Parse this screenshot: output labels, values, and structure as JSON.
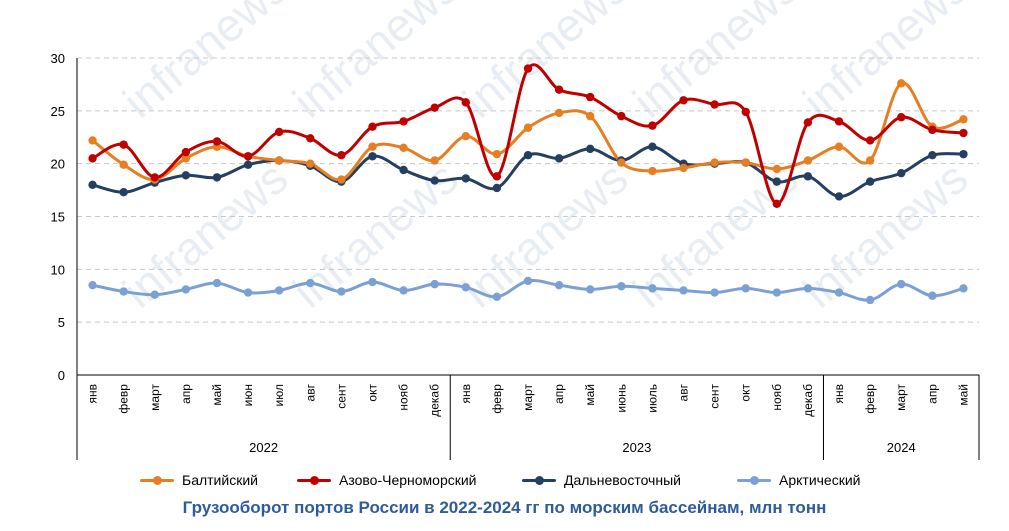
{
  "chart_data": {
    "type": "line",
    "title": "Грузооборот портов России в 2022-2024 гг по морским бассейнам, млн тонн",
    "watermark": "infranews",
    "ylim": [
      0,
      30
    ],
    "yticks": [
      0,
      5,
      10,
      15,
      20,
      25,
      30
    ],
    "grid": true,
    "legend_position": "bottom",
    "months": [
      "янв",
      "февр",
      "март",
      "апр",
      "май",
      "июн",
      "июл",
      "авг",
      "сент",
      "окт",
      "нояб",
      "декаб",
      "янв",
      "февр",
      "март",
      "апр",
      "май",
      "июнь",
      "июль",
      "авг",
      "сент",
      "окт",
      "нояб",
      "декаб",
      "янв",
      "февр",
      "март",
      "апр",
      "май"
    ],
    "years": [
      {
        "label": "2022",
        "count": 12
      },
      {
        "label": "2023",
        "count": 12
      },
      {
        "label": "2024",
        "count": 5
      }
    ],
    "series": [
      {
        "name": "Балтийский",
        "color": "#e67e22",
        "values": [
          22.2,
          19.9,
          18.5,
          20.5,
          21.6,
          20.7,
          20.3,
          20.0,
          18.5,
          21.6,
          21.5,
          20.3,
          22.6,
          20.9,
          23.4,
          24.8,
          24.5,
          20.1,
          19.3,
          19.6,
          20.1,
          20.1,
          19.5,
          20.3,
          21.6,
          20.3,
          27.6,
          23.5,
          24.2
        ]
      },
      {
        "name": "Азово-Черноморский",
        "color": "#c00000",
        "values": [
          20.5,
          21.8,
          18.7,
          21.1,
          22.1,
          20.7,
          23.0,
          22.4,
          20.8,
          23.5,
          24.0,
          25.3,
          25.8,
          18.8,
          29.0,
          27.0,
          26.3,
          24.5,
          23.6,
          26.0,
          25.6,
          24.9,
          16.2,
          23.9,
          24.0,
          22.2,
          24.4,
          23.2,
          22.9
        ]
      },
      {
        "name": "Дальневосточный",
        "color": "#243f60",
        "values": [
          18.0,
          17.3,
          18.2,
          18.9,
          18.7,
          19.9,
          20.3,
          19.8,
          18.3,
          20.7,
          19.4,
          18.4,
          18.6,
          17.7,
          20.8,
          20.5,
          21.4,
          20.3,
          21.6,
          20.0,
          20.0,
          20.1,
          18.3,
          18.8,
          16.9,
          18.3,
          19.1,
          20.8,
          20.9
        ]
      },
      {
        "name": "Арктический",
        "color": "#7ba0d4",
        "values": [
          8.5,
          7.9,
          7.6,
          8.1,
          8.7,
          7.8,
          8.0,
          8.7,
          7.9,
          8.8,
          8.0,
          8.6,
          8.3,
          7.4,
          8.9,
          8.5,
          8.1,
          8.4,
          8.2,
          8.0,
          7.8,
          8.2,
          7.8,
          8.2,
          7.8,
          7.1,
          8.6,
          7.5,
          8.2
        ]
      }
    ]
  }
}
